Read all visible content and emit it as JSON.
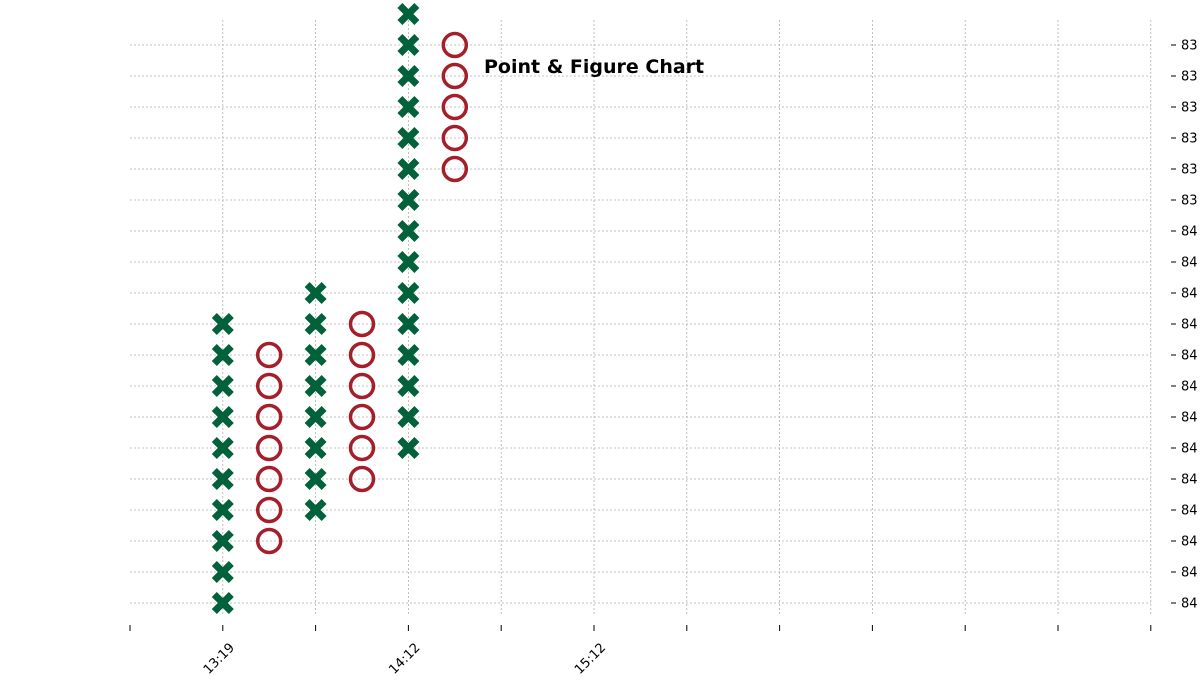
{
  "chart_data": {
    "type": "point-and-figure",
    "title": "Point & Figure Chart",
    "xlabel": "",
    "ylabel": "",
    "colors": {
      "x_mark": "#00613b",
      "o_mark": "#a51f2b",
      "grid": "#b0b0b0",
      "background": "#ffffff"
    },
    "grid": true,
    "y_axis_position": "right",
    "y_tick_labels": [
      "84",
      "84",
      "84",
      "84",
      "84",
      "84",
      "84",
      "84",
      "84",
      "84",
      "84",
      "84",
      "84",
      "83",
      "83",
      "83",
      "83",
      "83",
      "83"
    ],
    "x_tick_count": 12,
    "x_tick_labels": [
      {
        "index": 1,
        "label": "13:19"
      },
      {
        "index": 3,
        "label": "14:12"
      },
      {
        "index": 5,
        "label": "15:12"
      }
    ],
    "box_levels": {
      "top_level": 19,
      "visible_levels": 19,
      "note_levels": "level 0 is the lowest gridline row"
    },
    "columns": [
      {
        "slot": 1,
        "type": "X",
        "from_level": 0,
        "to_level": 9
      },
      {
        "slot": 1.5,
        "type": "O",
        "from_level": 2,
        "to_level": 8
      },
      {
        "slot": 2,
        "type": "X",
        "from_level": 3,
        "to_level": 10
      },
      {
        "slot": 2.5,
        "type": "O",
        "from_level": 4,
        "to_level": 9
      },
      {
        "slot": 3,
        "type": "X",
        "from_level": 5,
        "to_level": 19
      },
      {
        "slot": 3.5,
        "type": "O",
        "from_level": 14,
        "to_level": 18
      }
    ]
  }
}
